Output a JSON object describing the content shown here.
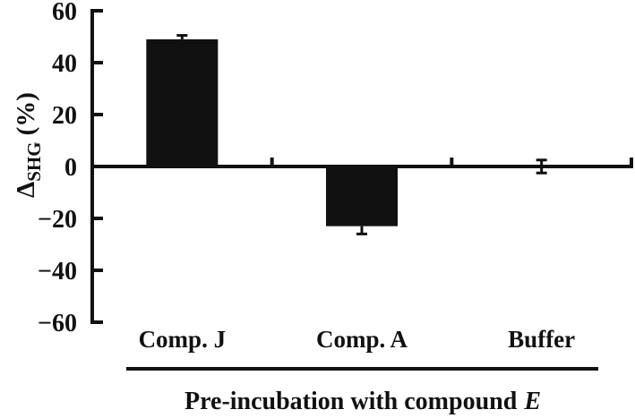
{
  "chart_data": {
    "type": "bar",
    "categories": [
      "Comp. J",
      "Comp. A",
      "Buffer"
    ],
    "values": [
      49,
      -23,
      0
    ],
    "errors": [
      1.5,
      3,
      2.5
    ],
    "ylabel": "Δ_SHG (%)",
    "ylabel_delta": "Δ",
    "ylabel_sub": "SHG",
    "ylabel_unit": "(%)",
    "xlabel": "Pre-incubation with compound E",
    "xlabel_plain": "Pre-incubation with compound",
    "xlabel_italic": "E",
    "ylim": [
      -60,
      60
    ],
    "yticks": [
      60,
      40,
      20,
      0,
      -20,
      -40,
      -60
    ],
    "ytick_labels": [
      "60",
      "40",
      "20",
      "0",
      "−20",
      "−40",
      "−60"
    ],
    "grid": false,
    "legend": false,
    "bar_color": "#111111",
    "axis_color": "#111111",
    "background_color": "#ffffff"
  }
}
